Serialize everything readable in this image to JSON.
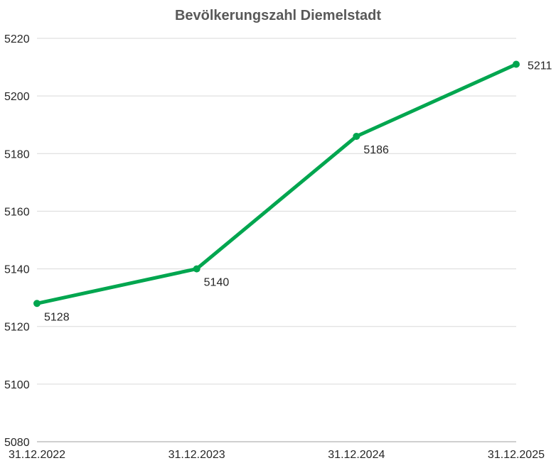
{
  "chart_data": {
    "type": "line",
    "title": "Bevölkerungszahl Diemelstadt",
    "xlabel": "",
    "ylabel": "",
    "categories": [
      "31.12.2022",
      "31.12.2023",
      "31.12.2024",
      "31.12.2025"
    ],
    "series": [
      {
        "values": [
          5128,
          5140,
          5186,
          5211
        ],
        "color": "#00a64f"
      }
    ],
    "ylim": [
      5080,
      5220
    ],
    "yticks": [
      5080,
      5100,
      5120,
      5140,
      5160,
      5180,
      5200,
      5220
    ],
    "grid": true,
    "legend": "none",
    "data_labels": true
  }
}
